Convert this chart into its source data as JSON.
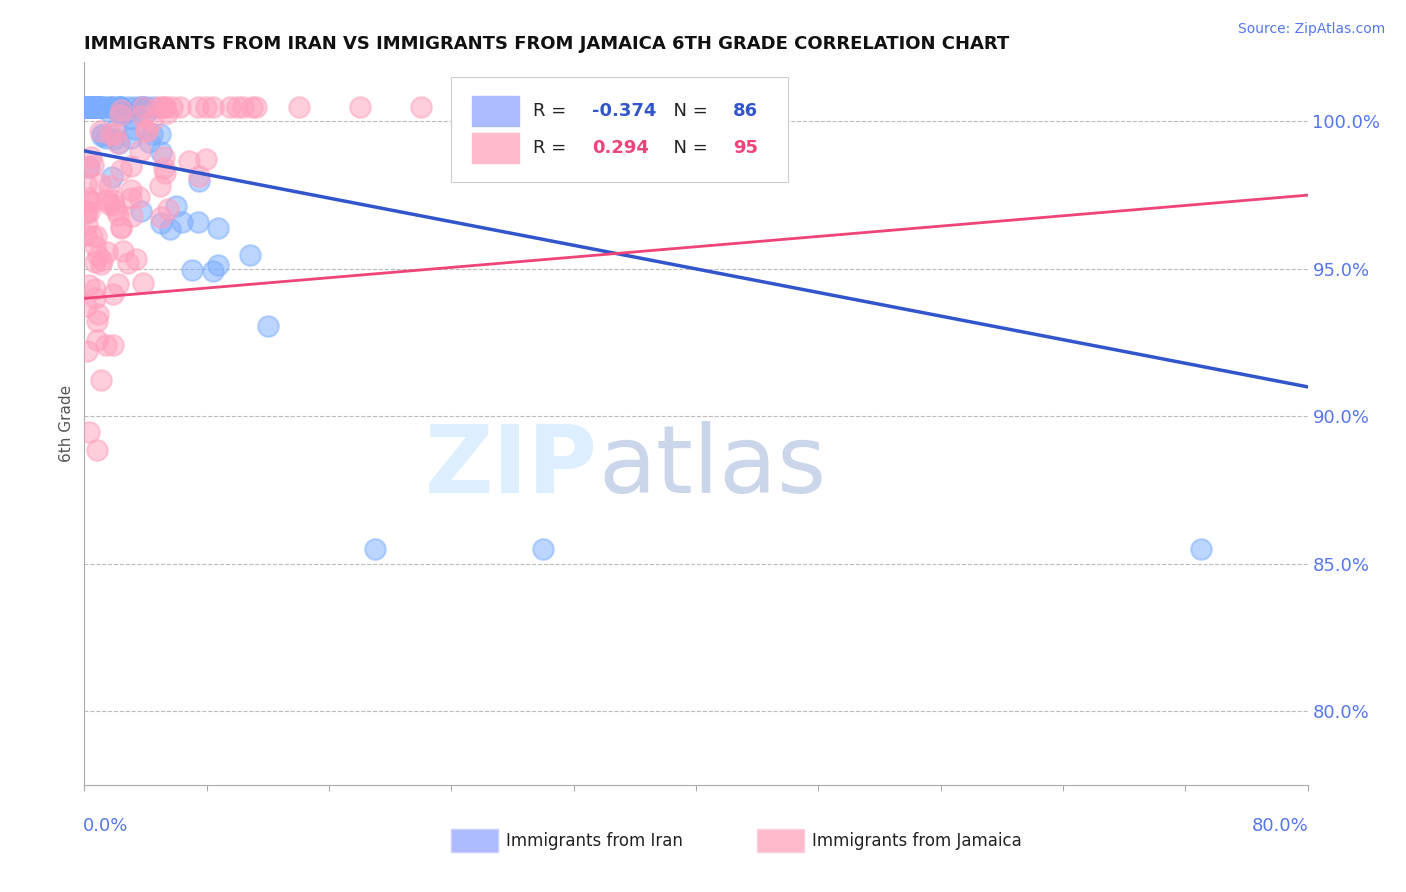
{
  "title": "IMMIGRANTS FROM IRAN VS IMMIGRANTS FROM JAMAICA 6TH GRADE CORRELATION CHART",
  "source": "Source: ZipAtlas.com",
  "ylabel": "6th Grade",
  "ytick_vals": [
    0.8,
    0.85,
    0.9,
    0.95,
    1.0
  ],
  "ytick_labels": [
    "80.0%",
    "85.0%",
    "90.0%",
    "95.0%",
    "100.0%"
  ],
  "xlim": [
    0.0,
    0.8
  ],
  "ylim": [
    0.775,
    1.02
  ],
  "iran_R": -0.374,
  "iran_N": 86,
  "jamaica_R": 0.294,
  "jamaica_N": 95,
  "iran_color": "#7AADFF",
  "jamaica_color": "#FF9EBB",
  "iran_line_color": "#3355CC",
  "jamaica_line_color": "#EE4477",
  "background_color": "#FFFFFF",
  "legend_label_iran": "Immigrants from Iran",
  "legend_label_jamaica": "Immigrants from Jamaica",
  "iran_scatter_seed": 42,
  "jamaica_scatter_seed": 99,
  "iran_line_x0": 0.0,
  "iran_line_y0": 0.99,
  "iran_line_x1": 0.8,
  "iran_line_y1": 0.91,
  "jamaica_line_x0": 0.0,
  "jamaica_line_y0": 0.94,
  "jamaica_line_x1": 0.8,
  "jamaica_line_y1": 0.975
}
